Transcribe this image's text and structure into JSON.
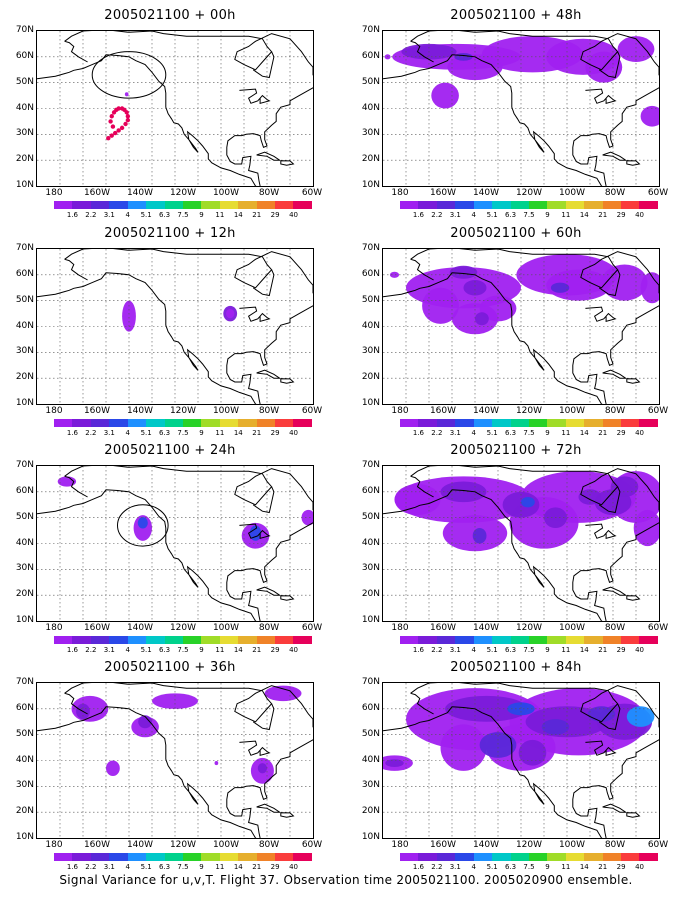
{
  "panels": [
    {
      "title": "2005021100 + 00h"
    },
    {
      "title": "2005021100 + 48h"
    },
    {
      "title": "2005021100 + 12h"
    },
    {
      "title": "2005021100 + 60h"
    },
    {
      "title": "2005021100 + 24h"
    },
    {
      "title": "2005021100 + 72h"
    },
    {
      "title": "2005021100 + 36h"
    },
    {
      "title": "2005021100 + 84h"
    }
  ],
  "lat_labels": [
    "70N",
    "60N",
    "50N",
    "40N",
    "30N",
    "20N",
    "10N"
  ],
  "lon_labels": [
    "180",
    "160W",
    "140W",
    "120W",
    "100W",
    "80W",
    "60W"
  ],
  "colorbar": {
    "labels": [
      "1.6",
      "2.2",
      "3.1",
      "4",
      "5.1",
      "6.3",
      "7.5",
      "9",
      "11",
      "14",
      "21",
      "29",
      "40"
    ],
    "colors": [
      "#a020f0",
      "#7a1bd9",
      "#5a28d8",
      "#2a48e8",
      "#1e90ff",
      "#00c8c8",
      "#00d28c",
      "#28d228",
      "#a0dc28",
      "#e6dc32",
      "#e6af2d",
      "#f08228",
      "#fa3c3c",
      "#e6005a"
    ]
  },
  "footer": "Signal Variance for u,v,T. Flight 37. Observation time 2005021100. 2005020900 ensemble."
}
